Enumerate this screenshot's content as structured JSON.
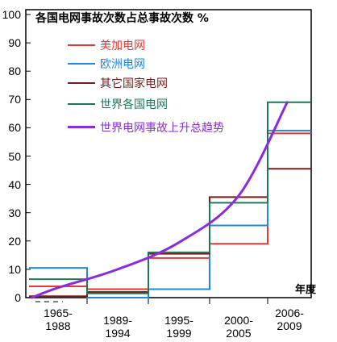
{
  "chart_data": {
    "type": "line",
    "title": "各国电网事故次数占总事故次数 %",
    "xlabel": "年度",
    "ylim": [
      0,
      100
    ],
    "yticks": [
      0,
      10,
      20,
      30,
      40,
      50,
      60,
      70,
      80,
      90,
      100
    ],
    "categories": [
      "1965-1988",
      "1989-1994",
      "1995-1999",
      "2000-2005",
      "2006-2009"
    ],
    "category_lines": [
      [
        "1965-",
        "1988"
      ],
      [
        "1989-",
        "1994"
      ],
      [
        "1995-",
        "1999"
      ],
      [
        "2000-",
        "2005"
      ],
      [
        "2006-",
        "2009"
      ]
    ],
    "series": [
      {
        "name": "美加电网",
        "color": "#e53935",
        "style": "step",
        "values": [
          4,
          3,
          14,
          19,
          58
        ]
      },
      {
        "name": "欧洲电网",
        "color": "#1e88e5",
        "style": "step",
        "values": [
          10.5,
          0,
          3,
          25.5,
          59
        ]
      },
      {
        "name": "其它国家电网",
        "color": "#7b1b1b",
        "style": "step",
        "values": [
          0.5,
          2,
          15.5,
          35.5,
          45.5
        ]
      },
      {
        "name": "世界各国电网",
        "color": "#1b7a55",
        "style": "step",
        "values": [
          6.5,
          1.5,
          16,
          33.5,
          69
        ]
      },
      {
        "name": "世界电网事故上升总趋势",
        "color": "#8a2be2",
        "style": "curve",
        "points": [
          [
            0.05,
            0
          ],
          [
            0.5,
            3.5
          ],
          [
            1.5,
            10
          ],
          [
            2.5,
            19.5
          ],
          [
            3.5,
            36
          ],
          [
            4.45,
            69
          ]
        ]
      }
    ],
    "legend_position": "top-left"
  }
}
